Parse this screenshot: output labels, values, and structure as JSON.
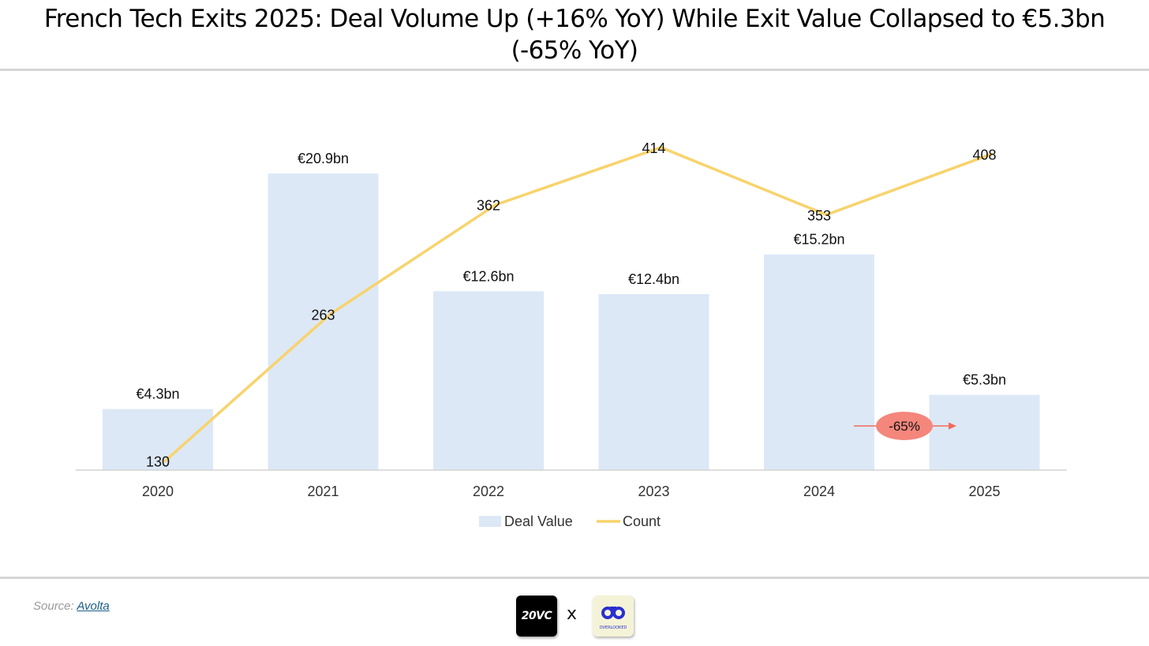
{
  "header": {
    "title_line1": "French Tech Exits 2025: Deal Volume Up (+16% YoY) While Exit Value Collapsed to €5.3bn",
    "title_line2": "(-65% YoY)"
  },
  "chart_data": {
    "type": "bar",
    "categories": [
      "2020",
      "2021",
      "2022",
      "2023",
      "2024",
      "2025"
    ],
    "series": [
      {
        "name": "Deal Value",
        "type": "bar",
        "values": [
          4.3,
          20.9,
          12.6,
          12.4,
          15.2,
          5.3
        ],
        "labels": [
          "€4.3bn",
          "€20.9bn",
          "€12.6bn",
          "€12.4bn",
          "€15.2bn",
          "€5.3bn"
        ],
        "color": "#dce8f6"
      },
      {
        "name": "Count",
        "type": "line",
        "values": [
          130,
          263,
          362,
          414,
          353,
          408
        ],
        "labels": [
          "130",
          "263",
          "362",
          "414",
          "353",
          "408"
        ],
        "color": "#f8d36d"
      }
    ],
    "legend": [
      "Deal Value",
      "Count"
    ],
    "legend_position": "bottom",
    "annotation": {
      "text": "-65%",
      "between": [
        "2024",
        "2025"
      ],
      "color": "#f4867c",
      "arrow_color": "#f26a5c"
    },
    "grid": false
  },
  "footer": {
    "source_prefix": "Source: ",
    "source_link": "Avolta",
    "logo_left_text": "20VC",
    "separator": "x",
    "logo_right_text": "OVERLOOKED"
  }
}
